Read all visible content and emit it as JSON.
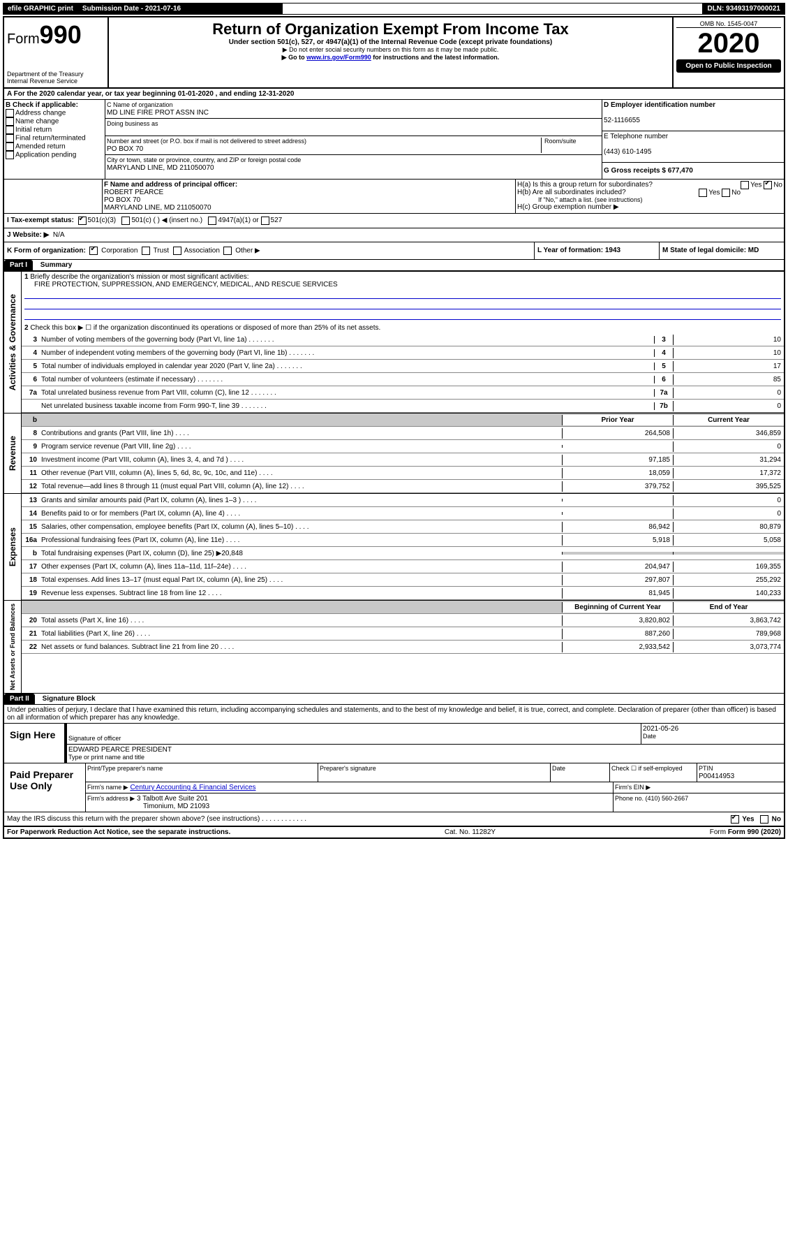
{
  "topbar": {
    "efile": "efile GRAPHIC print",
    "submission_label": "Submission Date - 2021-07-16",
    "dln": "DLN: 93493197000021"
  },
  "header": {
    "form_label": "Form",
    "form_number": "990",
    "dept1": "Department of the Treasury",
    "dept2": "Internal Revenue Service",
    "title": "Return of Organization Exempt From Income Tax",
    "subtitle": "Under section 501(c), 527, or 4947(a)(1) of the Internal Revenue Code (except private foundations)",
    "note1": "▶ Do not enter social security numbers on this form as it may be made public.",
    "note2_pre": "▶ Go to ",
    "note2_link": "www.irs.gov/Form990",
    "note2_post": " for instructions and the latest information.",
    "omb": "OMB No. 1545-0047",
    "year": "2020",
    "open": "Open to Public Inspection"
  },
  "sectionA": {
    "line": "A For the 2020 calendar year, or tax year beginning 01-01-2020    , and ending 12-31-2020"
  },
  "sectionB": {
    "label": "B Check if applicable:",
    "opts": [
      "Address change",
      "Name change",
      "Initial return",
      "Final return/terminated",
      "Amended return",
      "Application pending"
    ]
  },
  "sectionC": {
    "name_label": "C Name of organization",
    "name": "MD LINE FIRE PROT ASSN INC",
    "dba_label": "Doing business as",
    "addr_label": "Number and street (or P.O. box if mail is not delivered to street address)",
    "room_label": "Room/suite",
    "addr": "PO BOX 70",
    "city_label": "City or town, state or province, country, and ZIP or foreign postal code",
    "city": "MARYLAND LINE, MD  211050070"
  },
  "sectionD": {
    "label": "D Employer identification number",
    "value": "52-1116655"
  },
  "sectionE": {
    "label": "E Telephone number",
    "value": "(443) 610-1495"
  },
  "sectionG": {
    "label": "G Gross receipts $ 677,470"
  },
  "sectionF": {
    "label": "F  Name and address of principal officer:",
    "name": "ROBERT PEARCE",
    "addr1": "PO BOX 70",
    "addr2": "MARYLAND LINE, MD  211050070"
  },
  "sectionH": {
    "a": "H(a)  Is this a group return for subordinates?",
    "b": "H(b)  Are all subordinates included?",
    "b_note": "If \"No,\" attach a list. (see instructions)",
    "c": "H(c)  Group exemption number ▶",
    "yes": "Yes",
    "no": "No"
  },
  "sectionI": {
    "label": "I  Tax-exempt status:",
    "o1": "501(c)(3)",
    "o2": "501(c) (   ) ◀ (insert no.)",
    "o3": "4947(a)(1) or",
    "o4": "527"
  },
  "sectionJ": {
    "label": "J  Website: ▶",
    "value": "N/A"
  },
  "sectionK": {
    "label": "K Form of organization:",
    "o1": "Corporation",
    "o2": "Trust",
    "o3": "Association",
    "o4": "Other ▶"
  },
  "sectionL": {
    "label": "L Year of formation: 1943"
  },
  "sectionM": {
    "label": "M State of legal domicile: MD"
  },
  "part1": {
    "header": "Part I",
    "title": "Summary",
    "q1": "Briefly describe the organization's mission or most significant activities:",
    "q1_ans": "FIRE PROTECTION, SUPPRESSION, AND EMERGENCY, MEDICAL, AND RESCUE SERVICES",
    "q2": "Check this box ▶ ☐  if the organization discontinued its operations or disposed of more than 25% of its net assets.",
    "side1": "Activities & Governance",
    "side2": "Revenue",
    "side3": "Expenses",
    "side4": "Net Assets or Fund Balances",
    "col_prior": "Prior Year",
    "col_current": "Current Year",
    "col_begin": "Beginning of Current Year",
    "col_end": "End of Year",
    "lines_gov": [
      {
        "n": "3",
        "t": "Number of voting members of the governing body (Part VI, line 1a)",
        "c": "3",
        "v": "10"
      },
      {
        "n": "4",
        "t": "Number of independent voting members of the governing body (Part VI, line 1b)",
        "c": "4",
        "v": "10"
      },
      {
        "n": "5",
        "t": "Total number of individuals employed in calendar year 2020 (Part V, line 2a)",
        "c": "5",
        "v": "17"
      },
      {
        "n": "6",
        "t": "Total number of volunteers (estimate if necessary)",
        "c": "6",
        "v": "85"
      },
      {
        "n": "7a",
        "t": "Total unrelated business revenue from Part VIII, column (C), line 12",
        "c": "7a",
        "v": "0"
      },
      {
        "n": "",
        "t": "Net unrelated business taxable income from Form 990-T, line 39",
        "c": "7b",
        "v": "0"
      }
    ],
    "lines_rev": [
      {
        "n": "8",
        "t": "Contributions and grants (Part VIII, line 1h)",
        "p": "264,508",
        "c": "346,859"
      },
      {
        "n": "9",
        "t": "Program service revenue (Part VIII, line 2g)",
        "p": "",
        "c": "0"
      },
      {
        "n": "10",
        "t": "Investment income (Part VIII, column (A), lines 3, 4, and 7d )",
        "p": "97,185",
        "c": "31,294"
      },
      {
        "n": "11",
        "t": "Other revenue (Part VIII, column (A), lines 5, 6d, 8c, 9c, 10c, and 11e)",
        "p": "18,059",
        "c": "17,372"
      },
      {
        "n": "12",
        "t": "Total revenue—add lines 8 through 11 (must equal Part VIII, column (A), line 12)",
        "p": "379,752",
        "c": "395,525"
      }
    ],
    "lines_exp": [
      {
        "n": "13",
        "t": "Grants and similar amounts paid (Part IX, column (A), lines 1–3 )",
        "p": "",
        "c": "0"
      },
      {
        "n": "14",
        "t": "Benefits paid to or for members (Part IX, column (A), line 4)",
        "p": "",
        "c": "0"
      },
      {
        "n": "15",
        "t": "Salaries, other compensation, employee benefits (Part IX, column (A), lines 5–10)",
        "p": "86,942",
        "c": "80,879"
      },
      {
        "n": "16a",
        "t": "Professional fundraising fees (Part IX, column (A), line 11e)",
        "p": "5,918",
        "c": "5,058"
      },
      {
        "n": "b",
        "t": "Total fundraising expenses (Part IX, column (D), line 25) ▶20,848",
        "p": "",
        "c": ""
      },
      {
        "n": "17",
        "t": "Other expenses (Part IX, column (A), lines 11a–11d, 11f–24e)",
        "p": "204,947",
        "c": "169,355"
      },
      {
        "n": "18",
        "t": "Total expenses. Add lines 13–17 (must equal Part IX, column (A), line 25)",
        "p": "297,807",
        "c": "255,292"
      },
      {
        "n": "19",
        "t": "Revenue less expenses. Subtract line 18 from line 12",
        "p": "81,945",
        "c": "140,233"
      }
    ],
    "lines_net": [
      {
        "n": "20",
        "t": "Total assets (Part X, line 16)",
        "p": "3,820,802",
        "c": "3,863,742"
      },
      {
        "n": "21",
        "t": "Total liabilities (Part X, line 26)",
        "p": "887,260",
        "c": "789,968"
      },
      {
        "n": "22",
        "t": "Net assets or fund balances. Subtract line 21 from line 20",
        "p": "2,933,542",
        "c": "3,073,774"
      }
    ]
  },
  "part2": {
    "header": "Part II",
    "title": "Signature Block",
    "perjury": "Under penalties of perjury, I declare that I have examined this return, including accompanying schedules and statements, and to the best of my knowledge and belief, it is true, correct, and complete. Declaration of preparer (other than officer) is based on all information of which preparer has any knowledge.",
    "sign_here": "Sign Here",
    "sig_officer": "Signature of officer",
    "date": "2021-05-26",
    "date_label": "Date",
    "officer_name": "EDWARD PEARCE  PRESIDENT",
    "type_name": "Type or print name and title",
    "paid": "Paid Preparer Use Only",
    "prep_name_label": "Print/Type preparer's name",
    "prep_sig_label": "Preparer's signature",
    "check_self": "Check ☐ if self-employed",
    "ptin_label": "PTIN",
    "ptin": "P00414953",
    "firm_name_label": "Firm's name    ▶",
    "firm_name": "Century Accounting & Financial Services",
    "firm_ein_label": "Firm's EIN ▶",
    "firm_addr_label": "Firm's address ▶",
    "firm_addr1": "3 Talbott Ave Suite 201",
    "firm_addr2": "Timonium, MD  21093",
    "phone_label": "Phone no. (410) 560-2667",
    "discuss": "May the IRS discuss this return with the preparer shown above? (see instructions)",
    "yes": "Yes",
    "no": "No"
  },
  "footer": {
    "paperwork": "For Paperwork Reduction Act Notice, see the separate instructions.",
    "cat": "Cat. No. 11282Y",
    "form": "Form 990 (2020)"
  }
}
